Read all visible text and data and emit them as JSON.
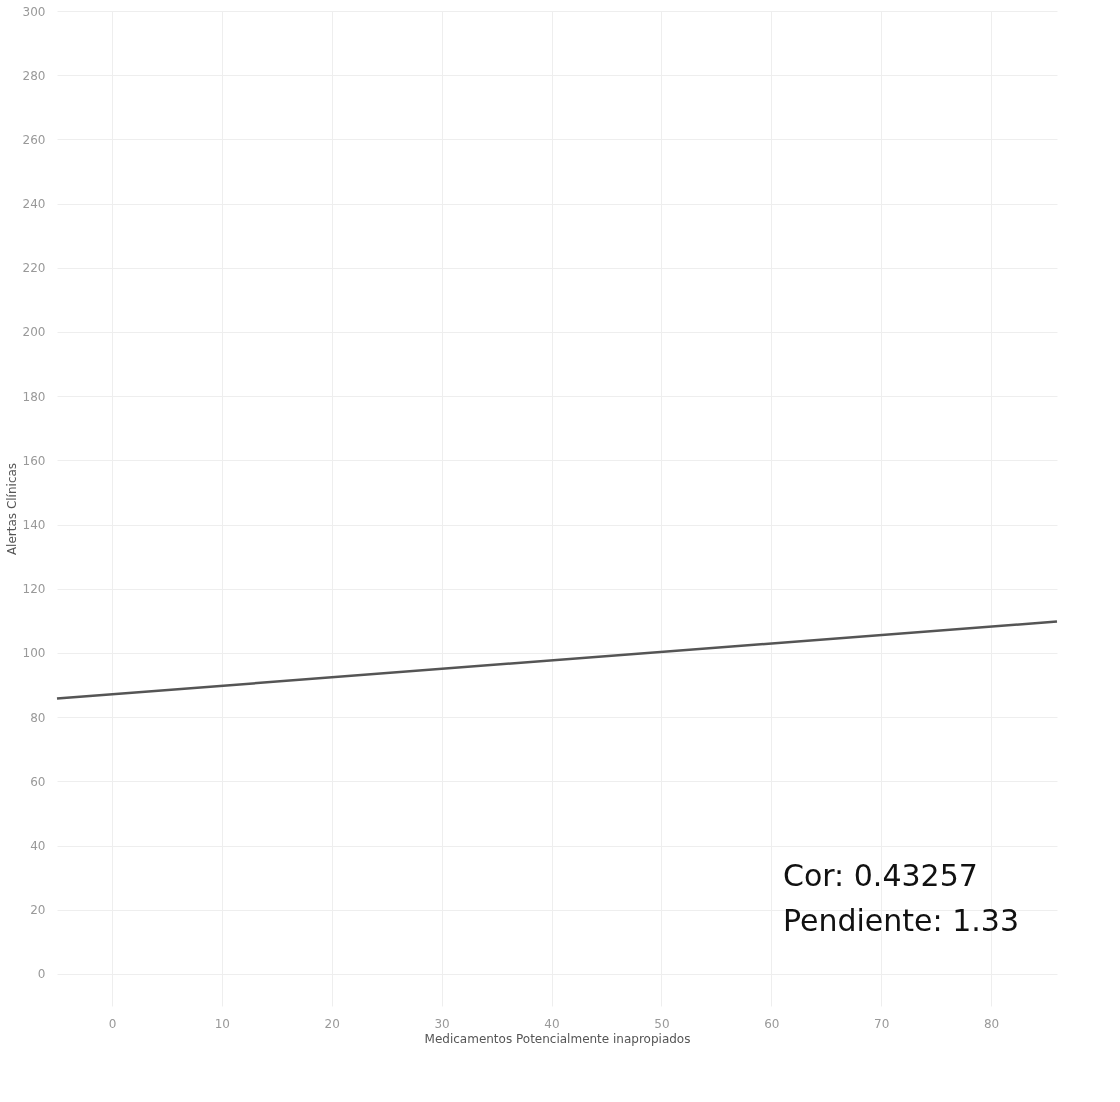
{
  "chart_data": {
    "type": "line",
    "xlabel": "Medicamentos Potencialmente inapropiados",
    "ylabel": "Alertas Clínicas",
    "x": [
      -5,
      86
    ],
    "series": [
      {
        "color": "#555555",
        "values": [
          85.8,
          109.8
        ]
      }
    ],
    "xlim": [
      -5,
      86
    ],
    "xticks": [
      0,
      10,
      20,
      30,
      40,
      50,
      60,
      70,
      80
    ],
    "ylim": [
      -10,
      300
    ],
    "yticks": [
      0,
      20,
      40,
      60,
      80,
      100,
      120,
      140,
      160,
      180,
      200,
      220,
      240,
      260,
      280,
      300
    ],
    "grid": true,
    "marker": "none",
    "line_style": "solid",
    "annotations": [
      "Cor: 0.43257",
      "Pendiente: 1.33"
    ]
  }
}
